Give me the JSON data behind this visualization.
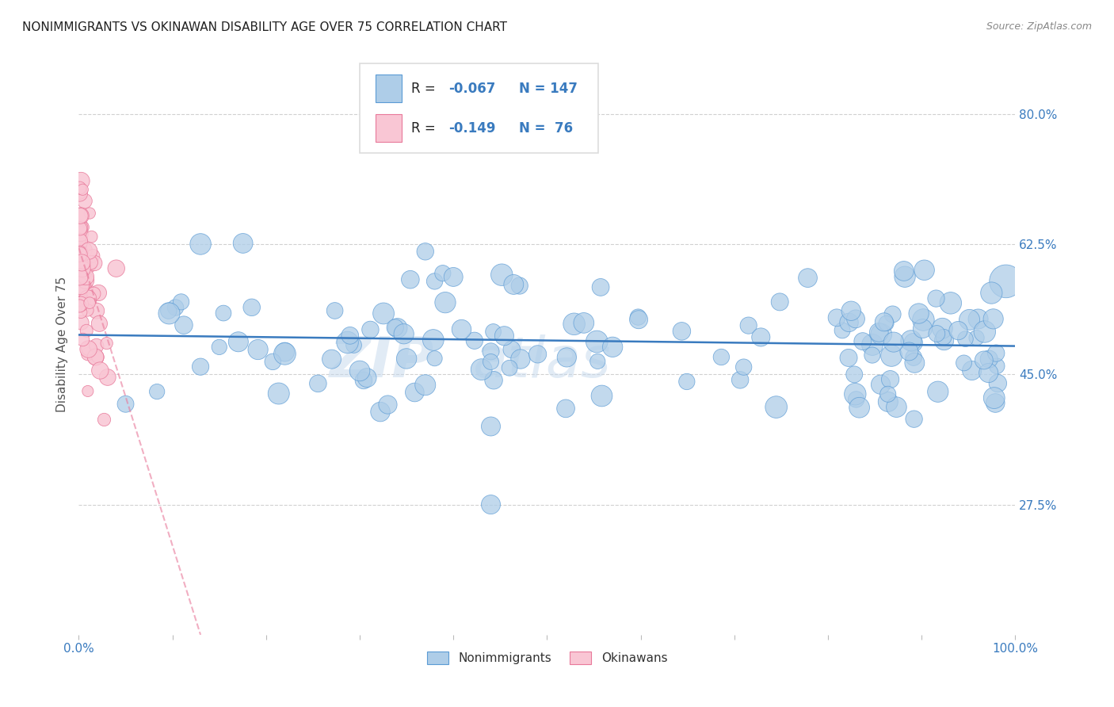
{
  "title": "NONIMMIGRANTS VS OKINAWAN DISABILITY AGE OVER 75 CORRELATION CHART",
  "source": "Source: ZipAtlas.com",
  "ylabel": "Disability Age Over 75",
  "yticklabels": [
    "27.5%",
    "45.0%",
    "62.5%",
    "80.0%"
  ],
  "ytick_values": [
    0.275,
    0.45,
    0.625,
    0.8
  ],
  "xlim": [
    0.0,
    1.0
  ],
  "ylim": [
    0.1,
    0.88
  ],
  "blue_color": "#aecde8",
  "blue_edge_color": "#5b9bd5",
  "pink_color": "#f9c6d4",
  "pink_edge_color": "#e8799a",
  "blue_line_color": "#3a7bbf",
  "pink_line_color": "#d46a8a",
  "background_color": "#ffffff",
  "grid_color": "#cccccc",
  "title_color": "#222222",
  "axis_label_color": "#555555",
  "tick_label_color": "#3a7bbf",
  "legend_label_color": "#222222",
  "watermark_color": "#c5d8ec",
  "blue_trend_y_start": 0.503,
  "blue_trend_y_end": 0.488
}
